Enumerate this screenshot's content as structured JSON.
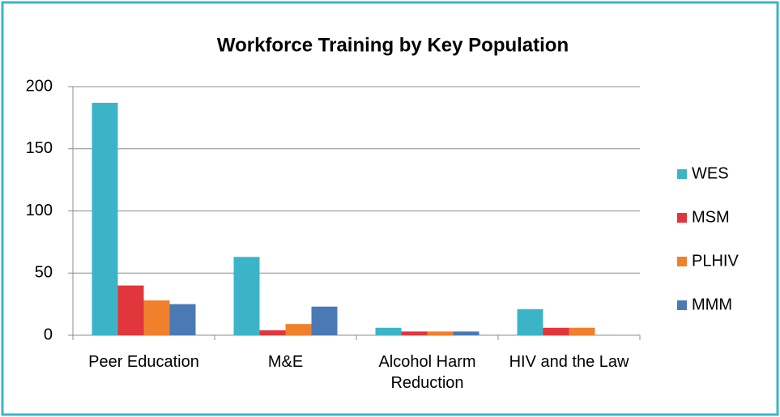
{
  "chart_data": {
    "type": "bar",
    "title": "Workforce Training by Key Population",
    "categories": [
      "Peer Education",
      "M&E",
      "Alcohol Harm Reduction",
      "HIV and the Law"
    ],
    "series": [
      {
        "name": "WES",
        "color": "#3cb4c8",
        "values": [
          187,
          63,
          6,
          21
        ]
      },
      {
        "name": "MSM",
        "color": "#e0363c",
        "values": [
          40,
          4,
          3,
          6
        ]
      },
      {
        "name": "PLHIV",
        "color": "#f0802c",
        "values": [
          28,
          9,
          3,
          6
        ]
      },
      {
        "name": "MMM",
        "color": "#4a7ab4",
        "values": [
          25,
          23,
          3,
          0
        ]
      }
    ],
    "ylim": [
      0,
      200
    ],
    "yticks": [
      0,
      50,
      100,
      150,
      200
    ],
    "grid": true,
    "legend": "right"
  }
}
